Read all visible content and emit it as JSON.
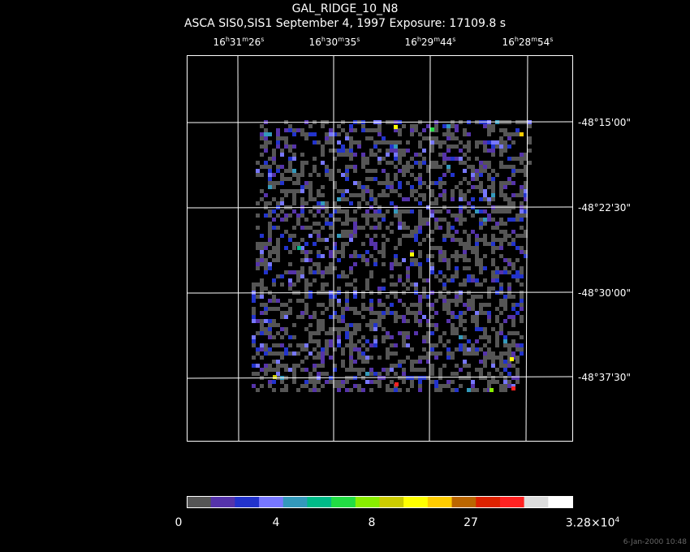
{
  "title": "GAL_RIDGE_10_N8",
  "subtitle": "ASCA SIS0,SIS1 September 4, 1997 Exposure: 17109.8 s",
  "ra_labels": [
    {
      "h": "16",
      "m": "31",
      "s": "26"
    },
    {
      "h": "16",
      "m": "30",
      "s": "35"
    },
    {
      "h": "16",
      "m": "29",
      "s": "44"
    },
    {
      "h": "16",
      "m": "28",
      "s": "54"
    }
  ],
  "dec_labels": [
    "-48°15'00\"",
    "-48°22'30\"",
    "-48°30'00\"",
    "-48°37'30\""
  ],
  "colorbar": {
    "colors": [
      "#555555",
      "#5533aa",
      "#2233cc",
      "#7777ff",
      "#3399bb",
      "#00bb88",
      "#22dd44",
      "#88ee00",
      "#cccc00",
      "#ffff00",
      "#ffcc00",
      "#bb6600",
      "#dd2200",
      "#ff2222",
      "#dddddd",
      "#ffffff"
    ],
    "labels": {
      "l0": "0",
      "l1": "4",
      "l2": "8",
      "l3": "27",
      "max_mantissa": "3.28",
      "max_exp": "4"
    }
  },
  "footer": "6-Jan-2000 10:48"
}
